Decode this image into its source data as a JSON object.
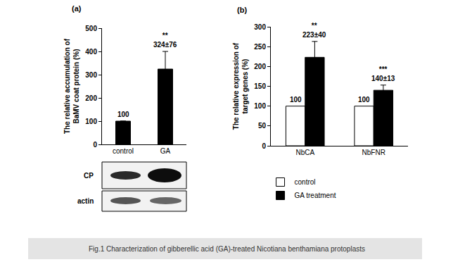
{
  "chart_data": [
    {
      "panel": "(a)",
      "type": "bar",
      "categories": [
        "control",
        "GA"
      ],
      "values": [
        100,
        324
      ],
      "error": [
        null,
        76
      ],
      "value_labels": [
        "100",
        "324±76"
      ],
      "significance": [
        null,
        "**"
      ],
      "data_labels": true,
      "color": "#000000",
      "ylabel": "The relative accumulation of\nBaMV coat protein (%)",
      "ylim": [
        0,
        500
      ],
      "yticks": [
        0,
        100,
        200,
        300,
        400,
        500
      ],
      "grid": false
    },
    {
      "panel": "(b)",
      "type": "bar",
      "categories": [
        "NbCA",
        "NbFNR"
      ],
      "series": [
        {
          "name": "control",
          "color": "#ffffff",
          "values": [
            100,
            100
          ],
          "value_labels": [
            "100",
            "100"
          ],
          "significance": [
            null,
            null
          ]
        },
        {
          "name": "GA treatment",
          "color": "#000000",
          "values": [
            223,
            140
          ],
          "error": [
            40,
            13
          ],
          "value_labels": [
            "223±40",
            "140±13"
          ],
          "significance": [
            "**",
            "***"
          ]
        }
      ],
      "data_labels": true,
      "legend": "bottom",
      "ylabel": "The relative expression of\ntarget genes (%)",
      "ylim": [
        0,
        300
      ],
      "yticks": [
        0,
        50,
        100,
        150,
        200,
        250,
        300
      ],
      "grid": false
    }
  ],
  "blot": {
    "labels": [
      "CP",
      "actin"
    ]
  },
  "caption": "Fig.1 Characterization of gibberellic acid (GA)-treated Nicotiana benthamiana protoplasts"
}
